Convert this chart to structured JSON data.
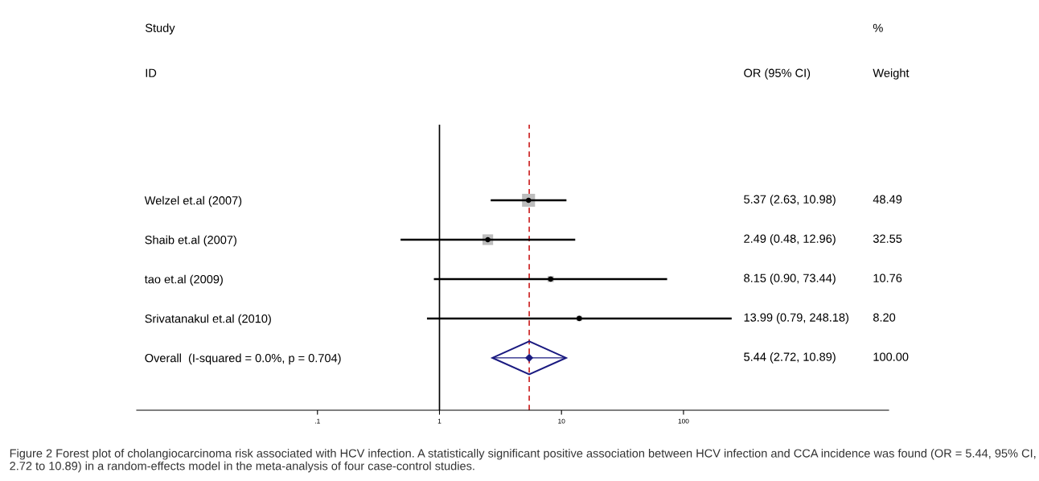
{
  "chart_data": {
    "type": "scatter",
    "orientation": "horizontal",
    "categories": [
      "Welzel et.al (2007)",
      "Shaib et.al (2007)",
      "tao et.al (2009)",
      "Srivatanakul et.al (2010)",
      "Overall  (I-squared = 0.0%, p = 0.704)"
    ],
    "series": [
      {
        "marker": "square",
        "color": "#bdbdbd",
        "values": [
          5.37,
          2.49,
          8.15,
          13.99,
          null
        ],
        "errors": [
          [
            2.63,
            10.98
          ],
          [
            0.48,
            12.96
          ],
          [
            0.9,
            73.44
          ],
          [
            0.79,
            248.18
          ],
          null
        ],
        "sizes": [
          1,
          0.671,
          0.222,
          0.169,
          null
        ]
      },
      {
        "marker": "diamond",
        "color": "#1a1a80",
        "values": [
          null,
          null,
          null,
          null,
          5.44
        ],
        "errors": [
          null,
          null,
          null,
          null,
          [
            2.72,
            10.89
          ]
        ]
      }
    ],
    "log": "x",
    "xlim": [
      0.0033,
      4800
    ],
    "xticks": [
      {
        "value": 0.1,
        "label": ".1"
      },
      {
        "value": 1,
        "label": "1"
      },
      {
        "value": 10,
        "label": "10"
      },
      {
        "value": 100,
        "label": "100"
      }
    ],
    "ref_lines": [
      {
        "axis": "x",
        "value": 1,
        "color": "#000000",
        "line_style": "solid"
      },
      {
        "axis": "x",
        "value": 5.44,
        "color": "#cc2222",
        "line_style": "dashed"
      }
    ],
    "annotations": [
      "Study",
      "ID",
      "OR (95% CI)",
      "%",
      "Weight",
      "5.37 (2.63, 10.98)",
      "2.49 (0.48, 12.96)",
      "8.15 (0.90, 73.44)",
      "13.99 (0.79, 248.18)",
      "5.44 (2.72, 10.89)",
      "48.49",
      "32.55",
      "10.76",
      "8.20",
      "100.00",
      "Figure 2 Forest plot of cholangiocarcinoma risk associated with HCV infection. A statistically significant positive association between HCV infection and CCA incidence was found (OR = 5.44, 95% CI, 2.72 to 10.89) in a random-effects model in the meta-analysis of four case-control studies."
    ]
  }
}
